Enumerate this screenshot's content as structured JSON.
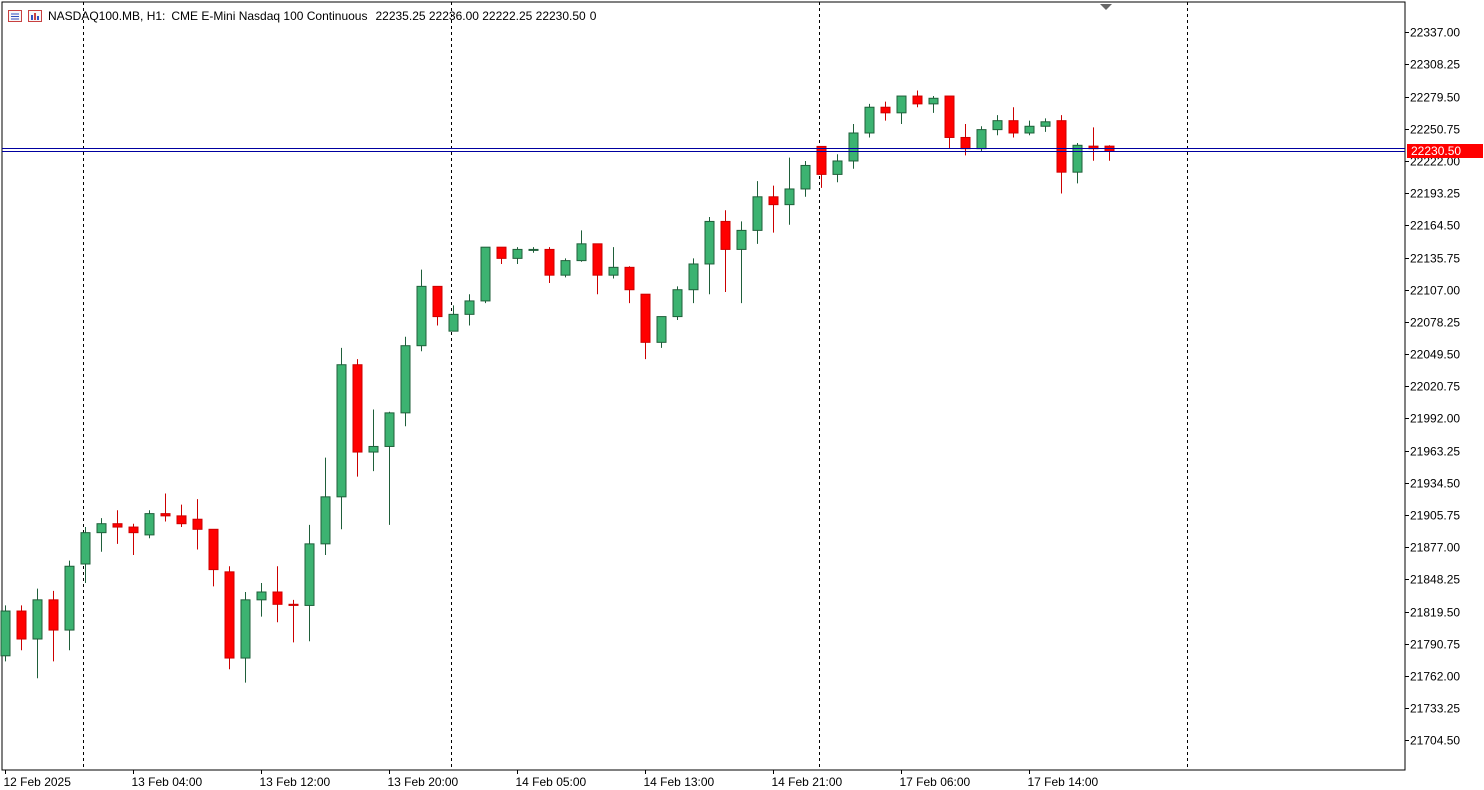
{
  "header": {
    "symbol": "NASDAQ100.MB, H1:",
    "description": "CME E-Mini Nasdaq 100 Continuous",
    "ohlc": "22235.25 22236.00 22222.25 22230.50",
    "volume": "0",
    "icons": [
      "chart-window-icon",
      "bar-chart-icon"
    ]
  },
  "colors": {
    "bull": "#3cb371",
    "bear": "#ff0000",
    "price_line": "#0000a0",
    "price_tag": "#ff0000",
    "grid": "#000000"
  },
  "chart_data": {
    "type": "candlestick",
    "symbol": "NASDAQ100.MB",
    "timeframe": "H1",
    "y_ticks": [
      "22337.00",
      "22308.25",
      "22279.50",
      "22250.75",
      "22222.00",
      "22193.25",
      "22164.50",
      "22135.75",
      "22107.00",
      "22078.25",
      "22049.50",
      "22020.75",
      "21992.00",
      "21963.25",
      "21934.50",
      "21905.75",
      "21877.00",
      "21848.25",
      "21819.50",
      "21790.75",
      "21762.00",
      "21733.25",
      "21704.50"
    ],
    "ylim": [
      21678.0,
      22364.0
    ],
    "x_labels": [
      "12 Feb 2025",
      "13 Feb 04:00",
      "13 Feb 12:00",
      "13 Feb 20:00",
      "14 Feb 05:00",
      "14 Feb 13:00",
      "14 Feb 21:00",
      "17 Feb 06:00",
      "17 Feb 14:00"
    ],
    "x_label_slots": [
      0,
      8,
      16,
      24,
      32,
      40,
      48,
      56,
      64
    ],
    "separator_slots": [
      4.9,
      27.9,
      50.9,
      73.9
    ],
    "current_price": "22230.50",
    "current_price_value": 22230.5,
    "second_price_value": 22233.5,
    "candles": [
      {
        "o": 21780,
        "h": 21825,
        "l": 21775,
        "c": 21820
      },
      {
        "o": 21820,
        "h": 21825,
        "l": 21785,
        "c": 21795
      },
      {
        "o": 21795,
        "h": 21840,
        "l": 21760,
        "c": 21830
      },
      {
        "o": 21830,
        "h": 21838,
        "l": 21775,
        "c": 21803
      },
      {
        "o": 21803,
        "h": 21865,
        "l": 21785,
        "c": 21860
      },
      {
        "o": 21862,
        "h": 21895,
        "l": 21845,
        "c": 21890
      },
      {
        "o": 21890,
        "h": 21903,
        "l": 21873,
        "c": 21898
      },
      {
        "o": 21898,
        "h": 21910,
        "l": 21880,
        "c": 21895
      },
      {
        "o": 21895,
        "h": 21898,
        "l": 21870,
        "c": 21890
      },
      {
        "o": 21888,
        "h": 21910,
        "l": 21885,
        "c": 21907
      },
      {
        "o": 21907,
        "h": 21925,
        "l": 21900,
        "c": 21905
      },
      {
        "o": 21905,
        "h": 21915,
        "l": 21895,
        "c": 21898
      },
      {
        "o": 21902,
        "h": 21920,
        "l": 21875,
        "c": 21893
      },
      {
        "o": 21893,
        "h": 21893,
        "l": 21842,
        "c": 21857
      },
      {
        "o": 21855,
        "h": 21860,
        "l": 21768,
        "c": 21778
      },
      {
        "o": 21778,
        "h": 21837,
        "l": 21756,
        "c": 21830
      },
      {
        "o": 21830,
        "h": 21845,
        "l": 21815,
        "c": 21837
      },
      {
        "o": 21837,
        "h": 21860,
        "l": 21810,
        "c": 21826
      },
      {
        "o": 21826,
        "h": 21830,
        "l": 21792,
        "c": 21825
      },
      {
        "o": 21825,
        "h": 21897,
        "l": 21793,
        "c": 21880
      },
      {
        "o": 21880,
        "h": 21957,
        "l": 21870,
        "c": 21922
      },
      {
        "o": 21922,
        "h": 22055,
        "l": 21893,
        "c": 22040
      },
      {
        "o": 22040,
        "h": 22045,
        "l": 21940,
        "c": 21962
      },
      {
        "o": 21962,
        "h": 22000,
        "l": 21945,
        "c": 21967
      },
      {
        "o": 21967,
        "h": 21998,
        "l": 21897,
        "c": 21997
      },
      {
        "o": 21997,
        "h": 22065,
        "l": 21985,
        "c": 22057
      },
      {
        "o": 22057,
        "h": 22125,
        "l": 22052,
        "c": 22110
      },
      {
        "o": 22110,
        "h": 22110,
        "l": 22075,
        "c": 22083
      },
      {
        "o": 22070,
        "h": 22093,
        "l": 22070,
        "c": 22085
      },
      {
        "o": 22085,
        "h": 22103,
        "l": 22075,
        "c": 22097
      },
      {
        "o": 22097,
        "h": 22145,
        "l": 22095,
        "c": 22145
      },
      {
        "o": 22145,
        "h": 22145,
        "l": 22130,
        "c": 22135
      },
      {
        "o": 22135,
        "h": 22145,
        "l": 22130,
        "c": 22143
      },
      {
        "o": 22143,
        "h": 22145,
        "l": 22140,
        "c": 22143
      },
      {
        "o": 22143,
        "h": 22145,
        "l": 22113,
        "c": 22120
      },
      {
        "o": 22120,
        "h": 22135,
        "l": 22118,
        "c": 22133
      },
      {
        "o": 22133,
        "h": 22160,
        "l": 22132,
        "c": 22148
      },
      {
        "o": 22148,
        "h": 22148,
        "l": 22103,
        "c": 22120
      },
      {
        "o": 22120,
        "h": 22145,
        "l": 22117,
        "c": 22127
      },
      {
        "o": 22127,
        "h": 22128,
        "l": 22095,
        "c": 22107
      },
      {
        "o": 22103,
        "h": 22103,
        "l": 22045,
        "c": 22060
      },
      {
        "o": 22060,
        "h": 22083,
        "l": 22055,
        "c": 22083
      },
      {
        "o": 22083,
        "h": 22110,
        "l": 22080,
        "c": 22107
      },
      {
        "o": 22107,
        "h": 22135,
        "l": 22095,
        "c": 22130
      },
      {
        "o": 22130,
        "h": 22172,
        "l": 22103,
        "c": 22168
      },
      {
        "o": 22168,
        "h": 22178,
        "l": 22105,
        "c": 22143
      },
      {
        "o": 22143,
        "h": 22168,
        "l": 22095,
        "c": 22160
      },
      {
        "o": 22160,
        "h": 22204,
        "l": 22148,
        "c": 22190
      },
      {
        "o": 22190,
        "h": 22200,
        "l": 22158,
        "c": 22183
      },
      {
        "o": 22183,
        "h": 22225,
        "l": 22165,
        "c": 22197
      },
      {
        "o": 22197,
        "h": 22222,
        "l": 22190,
        "c": 22218
      },
      {
        "o": 22235,
        "h": 22235,
        "l": 22198,
        "c": 22210
      },
      {
        "o": 22210,
        "h": 22228,
        "l": 22203,
        "c": 22222
      },
      {
        "o": 22222,
        "h": 22255,
        "l": 22215,
        "c": 22247
      },
      {
        "o": 22247,
        "h": 22273,
        "l": 22243,
        "c": 22270
      },
      {
        "o": 22270,
        "h": 22275,
        "l": 22258,
        "c": 22265
      },
      {
        "o": 22265,
        "h": 22280,
        "l": 22255,
        "c": 22280
      },
      {
        "o": 22280,
        "h": 22285,
        "l": 22270,
        "c": 22273
      },
      {
        "o": 22273,
        "h": 22280,
        "l": 22265,
        "c": 22278
      },
      {
        "o": 22280,
        "h": 22280,
        "l": 22233,
        "c": 22243
      },
      {
        "o": 22243,
        "h": 22255,
        "l": 22227,
        "c": 22233
      },
      {
        "o": 22233,
        "h": 22253,
        "l": 22230,
        "c": 22250
      },
      {
        "o": 22250,
        "h": 22263,
        "l": 22245,
        "c": 22258
      },
      {
        "o": 22258,
        "h": 22270,
        "l": 22243,
        "c": 22247
      },
      {
        "o": 22247,
        "h": 22258,
        "l": 22245,
        "c": 22253
      },
      {
        "o": 22253,
        "h": 22260,
        "l": 22248,
        "c": 22257
      },
      {
        "o": 22258,
        "h": 22263,
        "l": 22193,
        "c": 22212
      },
      {
        "o": 22212,
        "h": 22238,
        "l": 22202,
        "c": 22236
      },
      {
        "o": 22235.25,
        "h": 22252,
        "l": 22222.25,
        "c": 22233
      },
      {
        "o": 22235.25,
        "h": 22236,
        "l": 22222.25,
        "c": 22230.5
      }
    ]
  }
}
